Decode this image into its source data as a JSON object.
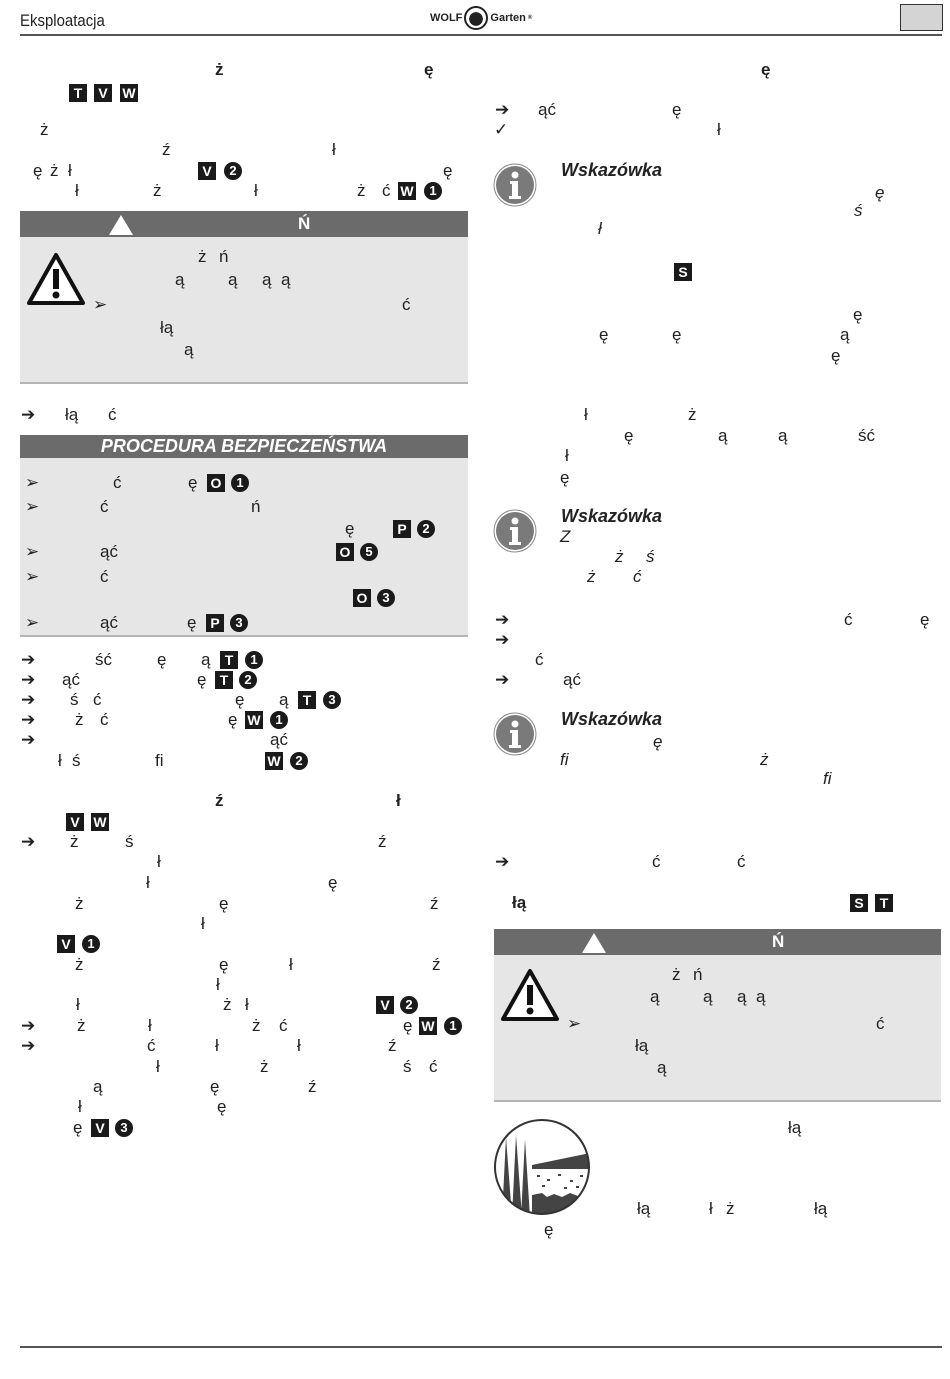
{
  "header": {
    "section_title": "Eksploatacja",
    "logo_left": "WOLF",
    "logo_right": "Garten",
    "logo_mark": "®"
  },
  "warning_header": {
    "letter": "Ń"
  },
  "procedure_header": "PROCEDURA BEZPIECZEŃSTWA",
  "notes": [
    "Wskazówka",
    "Wskazówka",
    "Wskazówka"
  ],
  "colors": {
    "header_bar": "#6b6b6b",
    "box_bg": "#e6e6e6",
    "badge": "#1a1a1a"
  },
  "glyph_lines": [
    [
      "ż",
      "ę"
    ],
    [
      {
        "b": "T"
      },
      {
        "b": "V"
      },
      {
        "b": "W"
      }
    ],
    [
      "ż"
    ],
    [
      "ź",
      "ł"
    ],
    [
      "ę",
      "ż",
      "ł",
      {
        "b": "V"
      },
      {
        "n": "2"
      },
      "ę"
    ],
    [
      "ł",
      "ż",
      "ł",
      "ż",
      "ć",
      {
        "b": "W"
      },
      {
        "n": "1"
      }
    ],
    [
      "ż",
      "ń"
    ],
    [
      "ą",
      "ą",
      "ą",
      "ą"
    ],
    [
      "➢",
      "ć"
    ],
    [
      "łą"
    ],
    [
      "ą"
    ],
    [
      "➔",
      "łą",
      "ć"
    ],
    [
      "➢",
      "ć",
      "ę",
      {
        "b": "O"
      },
      {
        "n": "1"
      }
    ],
    [
      "➢",
      "ć",
      "ń"
    ],
    [
      "ę",
      {
        "b": "P"
      },
      {
        "n": "2"
      }
    ],
    [
      "➢",
      "ąć",
      {
        "b": "O"
      },
      {
        "n": "5"
      }
    ],
    [
      "➢",
      "ć"
    ],
    [
      {
        "b": "O"
      },
      {
        "n": "3"
      }
    ],
    [
      "➢",
      "ąć",
      "ę",
      {
        "b": "P"
      },
      {
        "n": "3"
      }
    ],
    [
      "➔",
      "ść",
      "ę",
      "ą",
      {
        "b": "T"
      },
      {
        "n": "1"
      }
    ],
    [
      "➔",
      "ąć",
      "ę",
      {
        "b": "T"
      },
      {
        "n": "2"
      }
    ],
    [
      "➔",
      "ś",
      "ć",
      "ę",
      "ą",
      {
        "b": "T"
      },
      {
        "n": "3"
      }
    ],
    [
      "➔",
      "ż",
      "ć",
      "ę",
      {
        "b": "W"
      },
      {
        "n": "1"
      }
    ],
    [
      "➔",
      "ąć"
    ],
    [
      "ł",
      "ś",
      "fi",
      {
        "b": "W"
      },
      {
        "n": "2"
      }
    ],
    [
      "ź",
      "ł"
    ],
    [
      {
        "b": "V"
      },
      {
        "b": "W"
      }
    ],
    [
      "➔",
      "ż",
      "ś",
      "ź"
    ],
    [
      "ł"
    ],
    [
      "ł",
      "ę"
    ],
    [
      "ż",
      "ę",
      "ź"
    ],
    [
      "ł"
    ],
    [
      {
        "b": "V"
      },
      {
        "n": "1"
      }
    ],
    [
      "ż",
      "ę",
      "ł",
      "ź"
    ],
    [
      "ł"
    ],
    [
      "ł",
      "ż",
      "ł",
      {
        "b": "V"
      },
      {
        "n": "2"
      }
    ],
    [
      "➔",
      "ż",
      "ł",
      "ż",
      "ć",
      "ę",
      {
        "b": "W"
      },
      {
        "n": "1"
      }
    ],
    [
      "➔",
      "ć",
      "ł",
      "ł",
      "ź"
    ],
    [
      "ł",
      "ż",
      "ś",
      "ć"
    ],
    [
      "ą",
      "ę",
      "ź"
    ],
    [
      "ł",
      "ę"
    ],
    [
      "ę",
      {
        "b": "V"
      },
      {
        "n": "3"
      }
    ],
    [
      "ę"
    ],
    [
      "➔",
      "ąć",
      "ę"
    ],
    [
      "✓",
      "ł"
    ],
    [
      "ę"
    ],
    [
      "ś"
    ],
    [
      "ł"
    ],
    [
      {
        "b": "S"
      }
    ],
    [
      "ę"
    ],
    [
      "ę",
      "ę",
      "ą"
    ],
    [
      "ę"
    ],
    [
      "ł",
      "ż"
    ],
    [
      "ę",
      "ą",
      "ą",
      "ść"
    ],
    [
      "ł"
    ],
    [
      "ę"
    ],
    [
      "Z"
    ],
    [
      "ż",
      "ś"
    ],
    [
      "ż",
      "ć"
    ],
    [
      "➔",
      "ć",
      "ę"
    ],
    [
      "➔"
    ],
    [
      "ć"
    ],
    [
      "➔",
      "ąć"
    ],
    [
      "ę"
    ],
    [
      "fi",
      "ż"
    ],
    [
      "fi"
    ],
    [
      "➔",
      "ć",
      "ć"
    ],
    [
      "łą",
      {
        "b": "S"
      },
      {
        "b": "T"
      }
    ],
    [
      "ż",
      "ń"
    ],
    [
      "ą",
      "ą",
      "ą",
      "ą"
    ],
    [
      "➢",
      "ć"
    ],
    [
      "łą"
    ],
    [
      "ą"
    ],
    [
      "łą"
    ],
    [
      "łą",
      "ł",
      "ż",
      "łą"
    ],
    [
      "ę"
    ]
  ]
}
